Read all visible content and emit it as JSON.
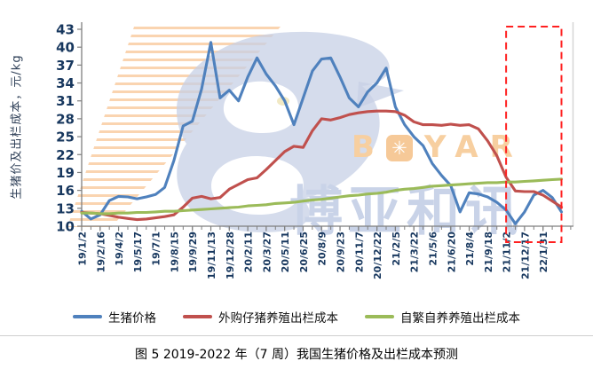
{
  "caption": "图 5 2019-2022 年（7 周）我国生猪价格及出栏成本预测",
  "y_axis": {
    "title": "生猪价及出栏成本，元/kg",
    "ticks": [
      43,
      40,
      37,
      34,
      31,
      28,
      25,
      22,
      19,
      16,
      13,
      10
    ]
  },
  "watermark": {
    "text_en": "BOYAR",
    "o_icon": "✳",
    "text_cn": "博亚和讯",
    "orange": "#f7cfa0",
    "blue": "#c9d3e8"
  },
  "legend": {
    "items": [
      {
        "label": "生猪价格",
        "color": "#4F81BD"
      },
      {
        "label": "外购仔猪养殖出栏成本",
        "color": "#C0504D"
      },
      {
        "label": "自繁自养养殖出栏成本",
        "color": "#9BBB59"
      }
    ]
  },
  "chart_data": {
    "type": "line",
    "title": "图 5 2019-2022 年（7 周）我国生猪价格及出栏成本预测",
    "ylabel": "生猪价及出栏成本，元/kg",
    "ylim": [
      10,
      43
    ],
    "y_ticks": [
      10,
      13,
      16,
      19,
      22,
      25,
      28,
      31,
      34,
      37,
      40,
      43
    ],
    "x_tick_labels": [
      "19/1/2",
      "19/2/16",
      "19/4/2",
      "19/5/17",
      "19/7/1",
      "19/8/15",
      "19/9/29",
      "19/11/13",
      "19/12/28",
      "20/2/11",
      "20/3/27",
      "20/5/11",
      "20/6/25",
      "20/8/9",
      "20/9/23",
      "20/11/7",
      "20/12/22",
      "21/2/5",
      "21/3/22",
      "21/5/6",
      "21/6/20",
      "21/8/4",
      "21/9/18",
      "21/11/2",
      "21/12/17",
      "22/1/31"
    ],
    "points_per_tick_interval": 2,
    "series": [
      {
        "name": "生猪价格",
        "color": "#4F81BD",
        "values": [
          12.5,
          11.2,
          11.9,
          14.3,
          15.0,
          14.9,
          14.6,
          14.9,
          15.3,
          16.5,
          21.0,
          26.8,
          27.6,
          33.0,
          40.8,
          31.5,
          32.8,
          31.0,
          35.0,
          38.2,
          35.5,
          33.5,
          31.0,
          27.0,
          31.5,
          36.0,
          38.0,
          38.2,
          35.0,
          31.5,
          30.0,
          32.5,
          34.0,
          36.5,
          30.0,
          27.0,
          25.0,
          23.5,
          20.5,
          18.5,
          16.8,
          12.4,
          15.6,
          15.4,
          14.9,
          14.0,
          12.7,
          10.4,
          12.4,
          15.2,
          16.0,
          14.8,
          12.4
        ]
      },
      {
        "name": "外购仔猪养殖出栏成本",
        "color": "#C0504D",
        "values": [
          12.3,
          12.2,
          12.1,
          11.8,
          11.5,
          11.3,
          11.1,
          11.2,
          11.4,
          11.6,
          11.9,
          13.2,
          14.7,
          15.0,
          14.6,
          14.8,
          16.2,
          17.0,
          17.8,
          18.1,
          19.5,
          21.0,
          22.5,
          23.4,
          23.2,
          26.0,
          28.0,
          27.8,
          28.2,
          28.7,
          29.0,
          29.2,
          29.3,
          29.3,
          29.2,
          28.6,
          27.5,
          27.0,
          27.0,
          26.9,
          27.1,
          26.9,
          27.0,
          26.3,
          24.3,
          21.8,
          18.2,
          15.9,
          15.8,
          15.8,
          15.2,
          14.2,
          13.2
        ]
      },
      {
        "name": "自繁自养养殖出栏成本",
        "color": "#9BBB59",
        "values": [
          12.2,
          12.2,
          12.1,
          12.1,
          12.2,
          12.2,
          12.3,
          12.3,
          12.4,
          12.5,
          12.5,
          12.6,
          12.7,
          12.8,
          12.9,
          13.0,
          13.1,
          13.2,
          13.4,
          13.5,
          13.6,
          13.8,
          13.9,
          14.0,
          14.2,
          14.4,
          14.5,
          14.7,
          14.9,
          15.1,
          15.2,
          15.4,
          15.5,
          15.7,
          16.0,
          16.2,
          16.3,
          16.5,
          16.7,
          16.8,
          16.9,
          17.0,
          17.1,
          17.2,
          17.3,
          17.3,
          17.4,
          17.4,
          17.5,
          17.6,
          17.7,
          17.8,
          17.9
        ]
      }
    ],
    "forecast_region": {
      "start_x_label": "21/11/2",
      "style": "red-dashed-box",
      "color": "#FF2020"
    }
  }
}
